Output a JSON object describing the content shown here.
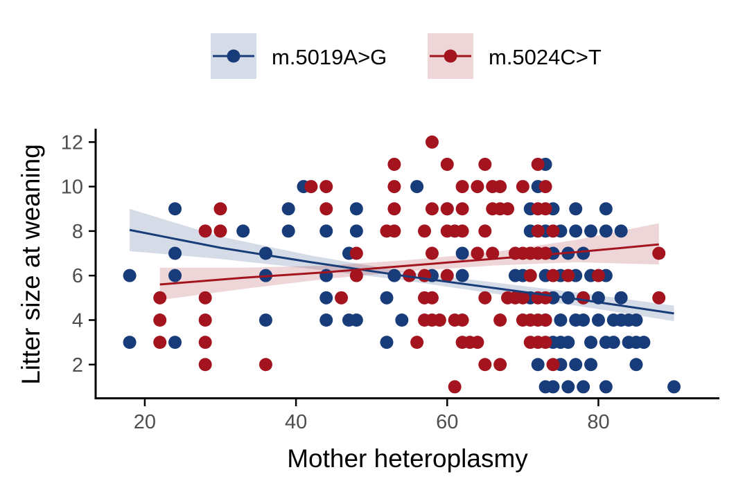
{
  "chart_data": {
    "type": "scatter",
    "xlabel": "Mother heteroplasmy",
    "ylabel": "Litter size at weaning",
    "xlim": [
      13.5,
      96
    ],
    "ylim": [
      0.5,
      12.6
    ],
    "x_ticks": [
      20,
      40,
      60,
      80
    ],
    "y_ticks": [
      2,
      4,
      6,
      8,
      10,
      12
    ],
    "grid": false,
    "legend_position": "top",
    "series": [
      {
        "name": "m.5019A>G",
        "color": "#173c79",
        "fit": {
          "x": [
            18,
            30,
            42,
            54,
            66,
            78,
            90
          ],
          "y": [
            8.05,
            7.25,
            6.6,
            6.0,
            5.45,
            4.9,
            4.3
          ]
        },
        "band": {
          "lower": [
            7.1,
            6.75,
            6.3,
            5.8,
            5.2,
            4.6,
            3.95
          ],
          "upper": [
            9.0,
            7.75,
            6.9,
            6.2,
            5.7,
            5.2,
            4.65
          ]
        },
        "points": [
          {
            "x": 18,
            "y": 6
          },
          {
            "x": 18,
            "y": 3
          },
          {
            "x": 24,
            "y": 9
          },
          {
            "x": 24,
            "y": 7
          },
          {
            "x": 24,
            "y": 6
          },
          {
            "x": 24,
            "y": 3
          },
          {
            "x": 33,
            "y": 8
          },
          {
            "x": 36,
            "y": 7
          },
          {
            "x": 36,
            "y": 6
          },
          {
            "x": 36,
            "y": 4
          },
          {
            "x": 39,
            "y": 9
          },
          {
            "x": 39,
            "y": 8
          },
          {
            "x": 41,
            "y": 10
          },
          {
            "x": 44,
            "y": 8
          },
          {
            "x": 44,
            "y": 6
          },
          {
            "x": 44,
            "y": 5
          },
          {
            "x": 44,
            "y": 4
          },
          {
            "x": 47,
            "y": 7
          },
          {
            "x": 47,
            "y": 4
          },
          {
            "x": 48,
            "y": 9
          },
          {
            "x": 48,
            "y": 8
          },
          {
            "x": 48,
            "y": 4
          },
          {
            "x": 52,
            "y": 5
          },
          {
            "x": 52,
            "y": 3
          },
          {
            "x": 53,
            "y": 6
          },
          {
            "x": 54,
            "y": 4
          },
          {
            "x": 56,
            "y": 10
          },
          {
            "x": 58,
            "y": 6
          },
          {
            "x": 60,
            "y": 9
          },
          {
            "x": 62,
            "y": 7
          },
          {
            "x": 62,
            "y": 6
          },
          {
            "x": 69,
            "y": 6
          },
          {
            "x": 70,
            "y": 6
          },
          {
            "x": 71,
            "y": 9
          },
          {
            "x": 71,
            "y": 8
          },
          {
            "x": 71,
            "y": 5
          },
          {
            "x": 72,
            "y": 10
          },
          {
            "x": 72,
            "y": 2
          },
          {
            "x": 73,
            "y": 11
          },
          {
            "x": 73,
            "y": 8
          },
          {
            "x": 73,
            "y": 6
          },
          {
            "x": 73,
            "y": 4
          },
          {
            "x": 73,
            "y": 1
          },
          {
            "x": 74,
            "y": 9
          },
          {
            "x": 74,
            "y": 7
          },
          {
            "x": 74,
            "y": 5
          },
          {
            "x": 74,
            "y": 3
          },
          {
            "x": 74,
            "y": 1
          },
          {
            "x": 75,
            "y": 8
          },
          {
            "x": 75,
            "y": 6
          },
          {
            "x": 75,
            "y": 4
          },
          {
            "x": 75,
            "y": 3
          },
          {
            "x": 75,
            "y": 2
          },
          {
            "x": 76,
            "y": 7
          },
          {
            "x": 76,
            "y": 5
          },
          {
            "x": 76,
            "y": 3
          },
          {
            "x": 76,
            "y": 1
          },
          {
            "x": 77,
            "y": 9
          },
          {
            "x": 77,
            "y": 8
          },
          {
            "x": 77,
            "y": 6
          },
          {
            "x": 77,
            "y": 4
          },
          {
            "x": 77,
            "y": 2
          },
          {
            "x": 78,
            "y": 7
          },
          {
            "x": 78,
            "y": 5
          },
          {
            "x": 78,
            "y": 4
          },
          {
            "x": 78,
            "y": 1
          },
          {
            "x": 79,
            "y": 8
          },
          {
            "x": 79,
            "y": 6
          },
          {
            "x": 79,
            "y": 3
          },
          {
            "x": 79,
            "y": 2
          },
          {
            "x": 80,
            "y": 5
          },
          {
            "x": 80,
            "y": 4
          },
          {
            "x": 81,
            "y": 9
          },
          {
            "x": 81,
            "y": 8
          },
          {
            "x": 81,
            "y": 6
          },
          {
            "x": 81,
            "y": 3
          },
          {
            "x": 81,
            "y": 1
          },
          {
            "x": 82,
            "y": 4
          },
          {
            "x": 82,
            "y": 3
          },
          {
            "x": 83,
            "y": 8
          },
          {
            "x": 83,
            "y": 5
          },
          {
            "x": 83,
            "y": 4
          },
          {
            "x": 84,
            "y": 4
          },
          {
            "x": 84,
            "y": 3
          },
          {
            "x": 85,
            "y": 4
          },
          {
            "x": 85,
            "y": 3
          },
          {
            "x": 85,
            "y": 2
          },
          {
            "x": 86,
            "y": 3
          },
          {
            "x": 90,
            "y": 1
          }
        ]
      },
      {
        "name": "m.5024C>T",
        "color": "#a3141f",
        "fit": {
          "x": [
            22,
            33,
            44,
            55,
            66,
            77,
            88
          ],
          "y": [
            5.6,
            5.9,
            6.15,
            6.45,
            6.75,
            7.05,
            7.4
          ]
        },
        "band": {
          "lower": [
            4.9,
            5.4,
            5.85,
            6.2,
            6.45,
            6.6,
            6.5
          ],
          "upper": [
            6.35,
            6.35,
            6.45,
            6.7,
            7.05,
            7.6,
            8.35
          ]
        },
        "points": [
          {
            "x": 22,
            "y": 5
          },
          {
            "x": 22,
            "y": 4
          },
          {
            "x": 22,
            "y": 3
          },
          {
            "x": 28,
            "y": 8
          },
          {
            "x": 28,
            "y": 5
          },
          {
            "x": 28,
            "y": 4
          },
          {
            "x": 28,
            "y": 3
          },
          {
            "x": 28,
            "y": 2
          },
          {
            "x": 30,
            "y": 9
          },
          {
            "x": 30,
            "y": 8
          },
          {
            "x": 36,
            "y": 2
          },
          {
            "x": 42,
            "y": 10
          },
          {
            "x": 44,
            "y": 10
          },
          {
            "x": 44,
            "y": 9
          },
          {
            "x": 46,
            "y": 5
          },
          {
            "x": 48,
            "y": 7
          },
          {
            "x": 48,
            "y": 6
          },
          {
            "x": 52,
            "y": 8
          },
          {
            "x": 53,
            "y": 11
          },
          {
            "x": 53,
            "y": 10
          },
          {
            "x": 53,
            "y": 9
          },
          {
            "x": 53,
            "y": 8
          },
          {
            "x": 55,
            "y": 6
          },
          {
            "x": 56,
            "y": 3
          },
          {
            "x": 57,
            "y": 8
          },
          {
            "x": 57,
            "y": 6
          },
          {
            "x": 57,
            "y": 5
          },
          {
            "x": 57,
            "y": 4
          },
          {
            "x": 58,
            "y": 12
          },
          {
            "x": 58,
            "y": 9
          },
          {
            "x": 58,
            "y": 7
          },
          {
            "x": 58,
            "y": 5
          },
          {
            "x": 58,
            "y": 4
          },
          {
            "x": 59,
            "y": 4
          },
          {
            "x": 60,
            "y": 11
          },
          {
            "x": 60,
            "y": 9
          },
          {
            "x": 60,
            "y": 8
          },
          {
            "x": 60,
            "y": 6
          },
          {
            "x": 61,
            "y": 8
          },
          {
            "x": 61,
            "y": 4
          },
          {
            "x": 61,
            "y": 1
          },
          {
            "x": 62,
            "y": 10
          },
          {
            "x": 62,
            "y": 9
          },
          {
            "x": 62,
            "y": 8
          },
          {
            "x": 62,
            "y": 4
          },
          {
            "x": 62,
            "y": 3
          },
          {
            "x": 63,
            "y": 3
          },
          {
            "x": 64,
            "y": 10
          },
          {
            "x": 64,
            "y": 7
          },
          {
            "x": 64,
            "y": 3
          },
          {
            "x": 65,
            "y": 11
          },
          {
            "x": 65,
            "y": 8
          },
          {
            "x": 65,
            "y": 5
          },
          {
            "x": 65,
            "y": 2
          },
          {
            "x": 66,
            "y": 10
          },
          {
            "x": 66,
            "y": 9
          },
          {
            "x": 66,
            "y": 7
          },
          {
            "x": 67,
            "y": 10
          },
          {
            "x": 67,
            "y": 9
          },
          {
            "x": 67,
            "y": 4
          },
          {
            "x": 67,
            "y": 2
          },
          {
            "x": 68,
            "y": 9
          },
          {
            "x": 68,
            "y": 5
          },
          {
            "x": 69,
            "y": 7
          },
          {
            "x": 69,
            "y": 5
          },
          {
            "x": 70,
            "y": 10
          },
          {
            "x": 70,
            "y": 7
          },
          {
            "x": 70,
            "y": 5
          },
          {
            "x": 70,
            "y": 4
          },
          {
            "x": 71,
            "y": 7
          },
          {
            "x": 71,
            "y": 6
          },
          {
            "x": 71,
            "y": 4
          },
          {
            "x": 71,
            "y": 3
          },
          {
            "x": 72,
            "y": 11
          },
          {
            "x": 72,
            "y": 9
          },
          {
            "x": 72,
            "y": 8
          },
          {
            "x": 72,
            "y": 7
          },
          {
            "x": 72,
            "y": 5
          },
          {
            "x": 72,
            "y": 4
          },
          {
            "x": 72,
            "y": 3
          },
          {
            "x": 73,
            "y": 10
          },
          {
            "x": 73,
            "y": 9
          },
          {
            "x": 73,
            "y": 7
          },
          {
            "x": 73,
            "y": 5
          },
          {
            "x": 73,
            "y": 4
          },
          {
            "x": 73,
            "y": 3
          },
          {
            "x": 74,
            "y": 8
          },
          {
            "x": 74,
            "y": 6
          },
          {
            "x": 74,
            "y": 2
          },
          {
            "x": 76,
            "y": 6
          },
          {
            "x": 78,
            "y": 5
          },
          {
            "x": 80,
            "y": 6
          },
          {
            "x": 88,
            "y": 7
          },
          {
            "x": 88,
            "y": 5
          }
        ]
      }
    ]
  }
}
